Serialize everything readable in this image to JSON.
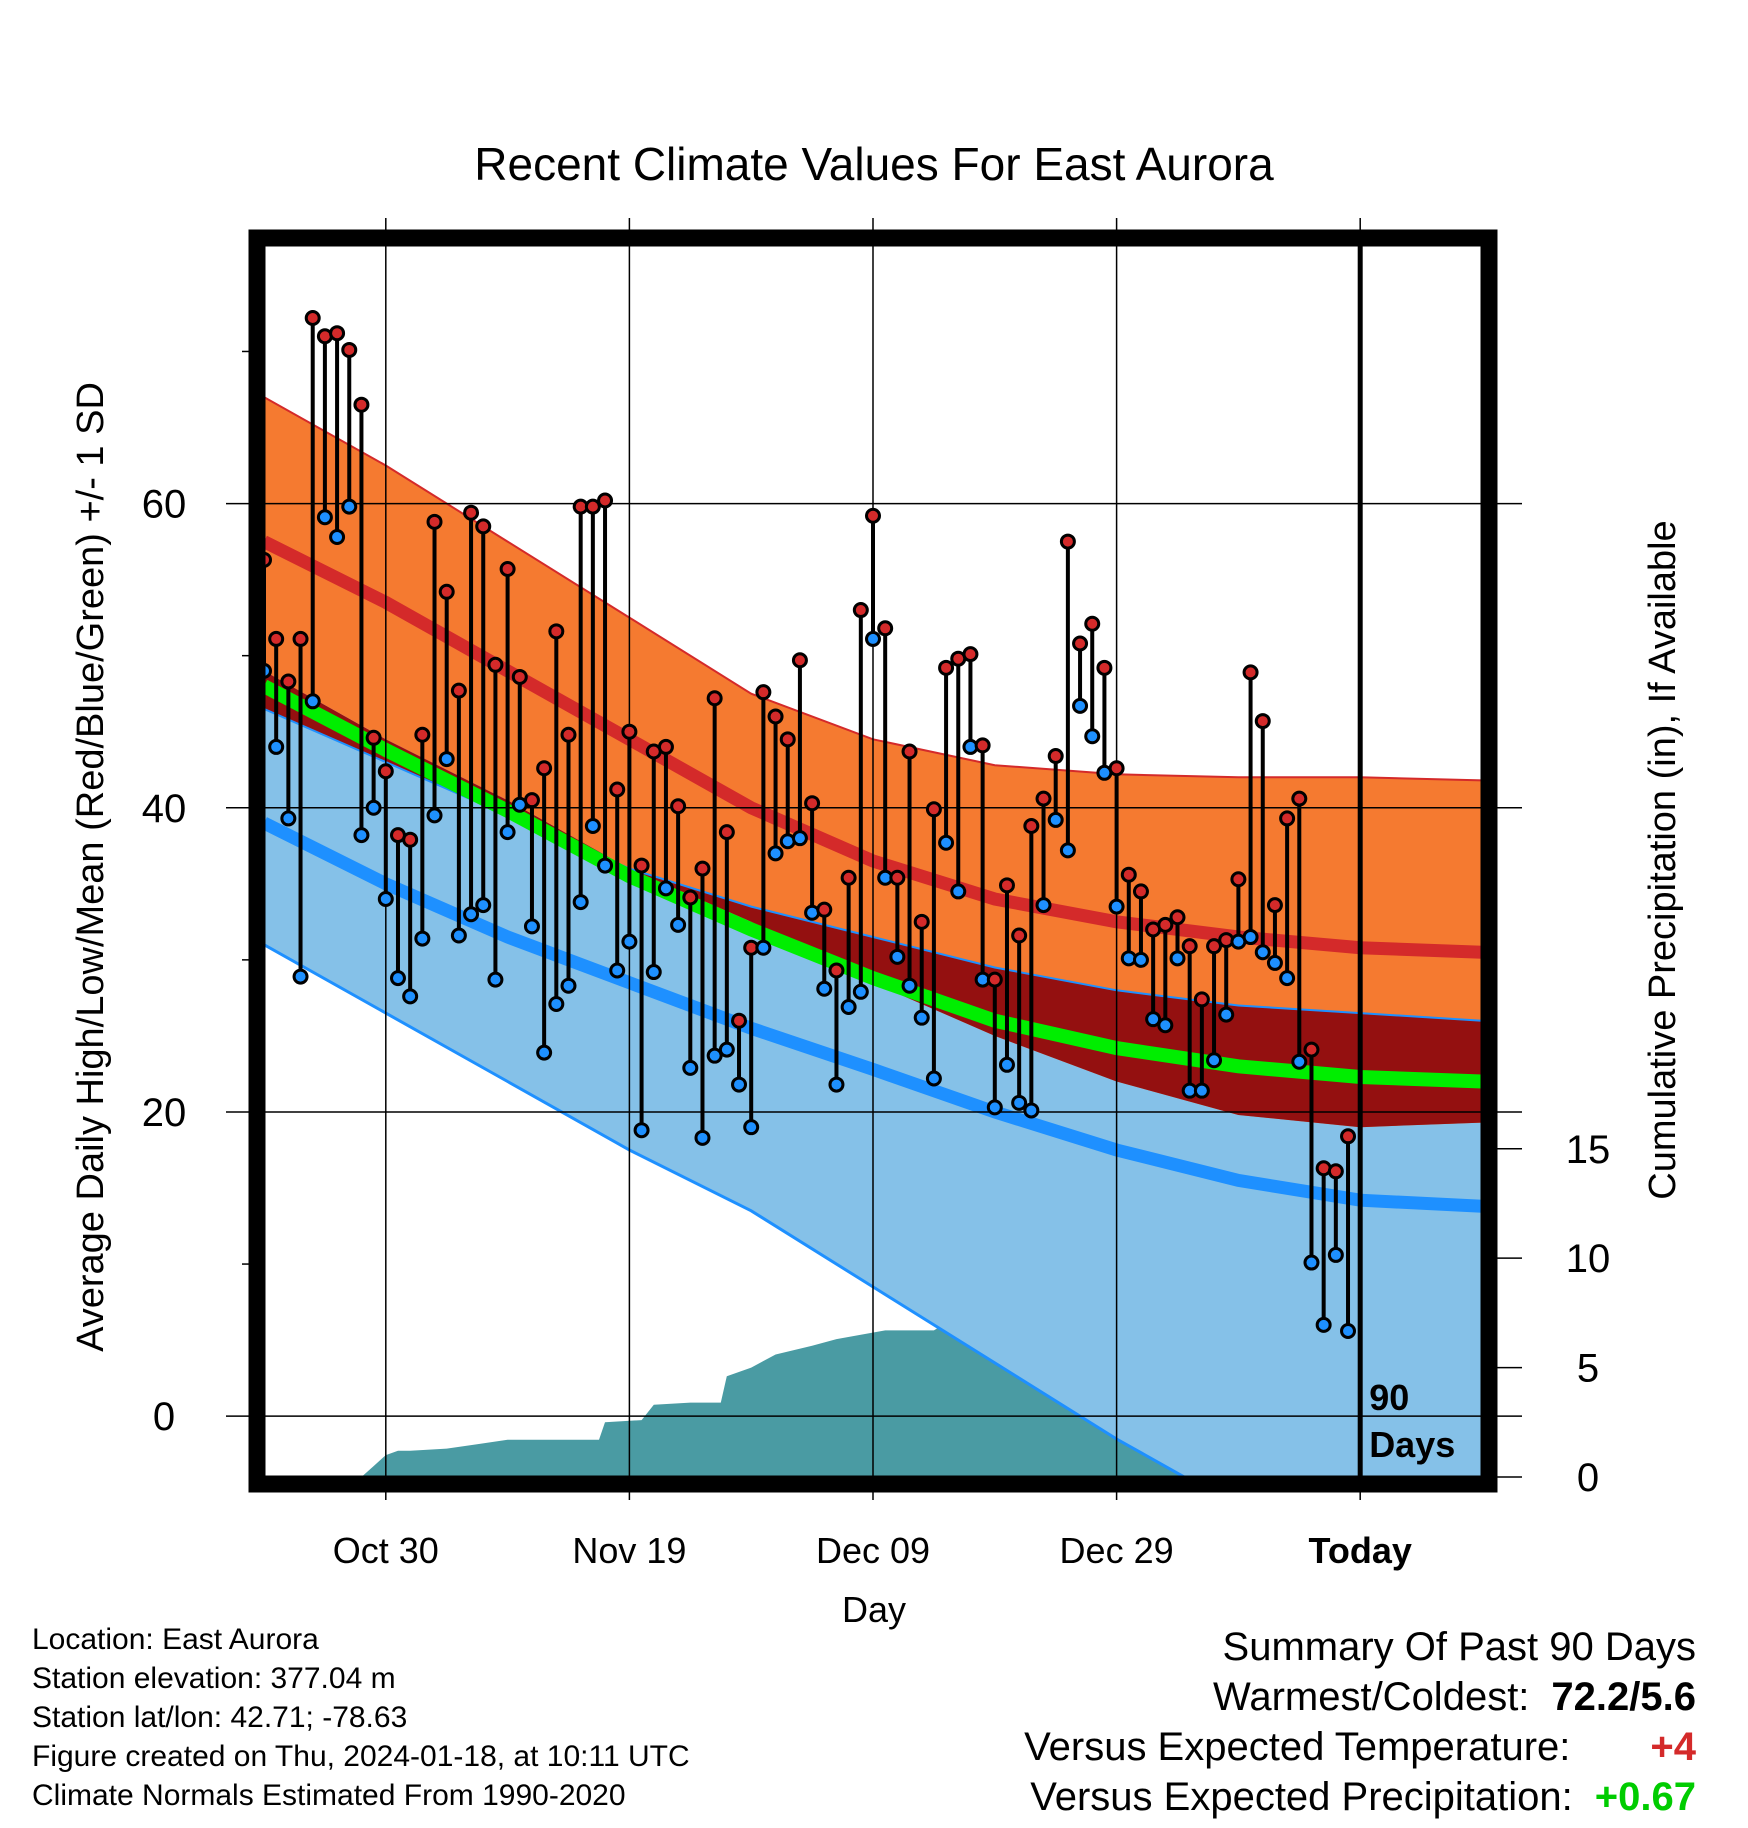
{
  "chart_data": {
    "type": "line",
    "title": "Recent Climate Values For East Aurora",
    "xlabel": "Day",
    "ylabel_left": "Average Daily High/Low/Mean (Red/Blue/Green) +/- 1 SD",
    "ylabel_right": "Cumulative Precipitation (in), If Available",
    "x_range": [
      0,
      100
    ],
    "y_range_temp": [
      -4,
      77
    ],
    "y_range_precip": [
      0,
      56.3
    ],
    "today_x": 90,
    "today_label": [
      "90",
      "Days"
    ],
    "x_ticks": [
      {
        "x": 10,
        "label": "Oct 30"
      },
      {
        "x": 30,
        "label": "Nov 19"
      },
      {
        "x": 50,
        "label": "Dec 09"
      },
      {
        "x": 70,
        "label": "Dec 29"
      },
      {
        "x": 90,
        "label": "Today"
      }
    ],
    "y_ticks_temp": [
      0,
      20,
      40,
      60
    ],
    "y_minor_ticks_temp": [
      10,
      30,
      50,
      70
    ],
    "y_ticks_precip": [
      0,
      5,
      10,
      15
    ],
    "normals": {
      "x": [
        0,
        10,
        20,
        30,
        40,
        50,
        60,
        70,
        80,
        90,
        100
      ],
      "high_upper": [
        67.0,
        62.5,
        57.5,
        52.5,
        47.5,
        44.5,
        42.8,
        42.2,
        42.0,
        42.0,
        41.8
      ],
      "high_mean": [
        57.5,
        53.5,
        49.0,
        44.5,
        40.0,
        36.5,
        34.0,
        32.5,
        31.5,
        30.8,
        30.5
      ],
      "high_lower": [
        49.0,
        44.5,
        40.5,
        36.0,
        32.5,
        28.5,
        25.0,
        22.0,
        19.8,
        19.0,
        19.3
      ],
      "mean_line": [
        48.0,
        43.8,
        39.8,
        35.5,
        32.0,
        28.8,
        26.0,
        24.2,
        23.0,
        22.3,
        22.0
      ],
      "low_upper": [
        46.5,
        43.0,
        39.5,
        36.0,
        33.5,
        31.5,
        29.5,
        28.0,
        27.0,
        26.5,
        26.0
      ],
      "low_mean": [
        39.0,
        35.0,
        31.5,
        28.5,
        25.5,
        22.8,
        20.0,
        17.5,
        15.5,
        14.2,
        13.8
      ],
      "low_lower": [
        31.0,
        26.5,
        22.0,
        17.5,
        13.5,
        8.5,
        3.5,
        -1.5,
        -6.0,
        -10.0,
        -14.0
      ]
    },
    "precip": {
      "x": [
        0,
        8.0,
        9.0,
        10.0,
        11.0,
        12.0,
        15.0,
        17.5,
        20.0,
        27.5,
        28.0,
        31.0,
        32.0,
        35.0,
        37.5,
        38.0,
        40.0,
        42.0,
        45.0,
        47.0,
        49.0,
        51.0,
        55.0,
        58.0,
        60.0,
        64.0,
        67.0,
        68.0,
        72.0,
        76.0,
        80.0,
        83.0,
        84.0,
        87.0,
        90.0,
        100.0
      ],
      "cum": [
        0,
        0,
        0.5,
        1.0,
        1.2,
        1.2,
        1.3,
        1.5,
        1.7,
        1.7,
        2.5,
        2.6,
        3.3,
        3.4,
        3.4,
        4.6,
        5.0,
        5.6,
        6.0,
        6.3,
        6.5,
        6.7,
        6.7,
        7.7,
        8.0,
        8.1,
        8.8,
        9.0,
        9.3,
        9.5,
        9.7,
        10.3,
        10.8,
        11.0,
        11.0,
        11.0
      ]
    },
    "observations": [
      {
        "x": 0,
        "high": 56.3,
        "low": 49.0
      },
      {
        "x": 1,
        "high": 51.1,
        "low": 44.0
      },
      {
        "x": 2,
        "high": 48.3,
        "low": 39.3
      },
      {
        "x": 3,
        "high": 51.1,
        "low": 28.9
      },
      {
        "x": 4,
        "high": 72.2,
        "low": 47.0
      },
      {
        "x": 5,
        "high": 71.0,
        "low": 59.1
      },
      {
        "x": 6,
        "high": 71.2,
        "low": 57.8
      },
      {
        "x": 7,
        "high": 70.1,
        "low": 59.8
      },
      {
        "x": 8,
        "high": 66.5,
        "low": 38.2
      },
      {
        "x": 9,
        "high": 44.6,
        "low": 40.0
      },
      {
        "x": 10,
        "high": 42.4,
        "low": 34.0
      },
      {
        "x": 11,
        "high": 38.2,
        "low": 28.8
      },
      {
        "x": 12,
        "high": 37.9,
        "low": 27.6
      },
      {
        "x": 13,
        "high": 44.8,
        "low": 31.4
      },
      {
        "x": 14,
        "high": 58.8,
        "low": 39.5
      },
      {
        "x": 15,
        "high": 54.2,
        "low": 43.2
      },
      {
        "x": 16,
        "high": 47.7,
        "low": 31.6
      },
      {
        "x": 17,
        "high": 59.4,
        "low": 33.0
      },
      {
        "x": 18,
        "high": 58.5,
        "low": 33.6
      },
      {
        "x": 19,
        "high": 49.4,
        "low": 28.7
      },
      {
        "x": 20,
        "high": 55.7,
        "low": 38.4
      },
      {
        "x": 21,
        "high": 48.6,
        "low": 40.2
      },
      {
        "x": 22,
        "high": 40.5,
        "low": 32.2
      },
      {
        "x": 23,
        "high": 42.6,
        "low": 23.9
      },
      {
        "x": 24,
        "high": 51.6,
        "low": 27.1
      },
      {
        "x": 25,
        "high": 44.8,
        "low": 28.3
      },
      {
        "x": 26,
        "high": 59.8,
        "low": 33.8
      },
      {
        "x": 27,
        "high": 59.8,
        "low": 38.8
      },
      {
        "x": 28,
        "high": 60.2,
        "low": 36.2
      },
      {
        "x": 29,
        "high": 41.2,
        "low": 29.3
      },
      {
        "x": 30,
        "high": 45.0,
        "low": 31.2
      },
      {
        "x": 31,
        "high": 36.2,
        "low": 18.8
      },
      {
        "x": 32,
        "high": 43.7,
        "low": 29.2
      },
      {
        "x": 33,
        "high": 44.0,
        "low": 34.7
      },
      {
        "x": 34,
        "high": 40.1,
        "low": 32.3
      },
      {
        "x": 35,
        "high": 34.1,
        "low": 22.9
      },
      {
        "x": 36,
        "high": 36.0,
        "low": 18.3
      },
      {
        "x": 37,
        "high": 47.2,
        "low": 23.7
      },
      {
        "x": 38,
        "high": 38.4,
        "low": 24.1
      },
      {
        "x": 39,
        "high": 26.0,
        "low": 21.8
      },
      {
        "x": 40,
        "high": 30.8,
        "low": 19.0
      },
      {
        "x": 41,
        "high": 47.6,
        "low": 30.8
      },
      {
        "x": 42,
        "high": 46.0,
        "low": 37.0
      },
      {
        "x": 43,
        "high": 44.5,
        "low": 37.8
      },
      {
        "x": 44,
        "high": 49.7,
        "low": 38.0
      },
      {
        "x": 45,
        "high": 40.3,
        "low": 33.1
      },
      {
        "x": 46,
        "high": 33.3,
        "low": 28.1
      },
      {
        "x": 47,
        "high": 29.3,
        "low": 21.8
      },
      {
        "x": 48,
        "high": 35.4,
        "low": 26.9
      },
      {
        "x": 49,
        "high": 53.0,
        "low": 27.9
      },
      {
        "x": 50,
        "high": 59.2,
        "low": 51.1
      },
      {
        "x": 51,
        "high": 51.8,
        "low": 35.4
      },
      {
        "x": 52,
        "high": 35.4,
        "low": 30.2
      },
      {
        "x": 53,
        "high": 43.7,
        "low": 28.3
      },
      {
        "x": 54,
        "high": 32.5,
        "low": 26.2
      },
      {
        "x": 55,
        "high": 39.9,
        "low": 22.2
      },
      {
        "x": 56,
        "high": 49.2,
        "low": 37.7
      },
      {
        "x": 57,
        "high": 49.8,
        "low": 34.5
      },
      {
        "x": 58,
        "high": 50.1,
        "low": 44.0
      },
      {
        "x": 59,
        "high": 44.1,
        "low": 28.7
      },
      {
        "x": 60,
        "high": 28.7,
        "low": 20.3
      },
      {
        "x": 61,
        "high": 34.9,
        "low": 23.1
      },
      {
        "x": 62,
        "high": 31.6,
        "low": 20.6
      },
      {
        "x": 63,
        "high": 38.8,
        "low": 20.1
      },
      {
        "x": 64,
        "high": 40.6,
        "low": 33.6
      },
      {
        "x": 65,
        "high": 43.4,
        "low": 39.2
      },
      {
        "x": 66,
        "high": 57.5,
        "low": 37.2
      },
      {
        "x": 67,
        "high": 50.8,
        "low": 46.7
      },
      {
        "x": 68,
        "high": 52.1,
        "low": 44.7
      },
      {
        "x": 69,
        "high": 49.2,
        "low": 42.3
      },
      {
        "x": 70,
        "high": 42.6,
        "low": 33.5
      },
      {
        "x": 71,
        "high": 35.6,
        "low": 30.1
      },
      {
        "x": 72,
        "high": 34.5,
        "low": 30.0
      },
      {
        "x": 73,
        "high": 32.0,
        "low": 26.1
      },
      {
        "x": 74,
        "high": 32.3,
        "low": 25.7
      },
      {
        "x": 75,
        "high": 32.8,
        "low": 30.1
      },
      {
        "x": 76,
        "high": 30.9,
        "low": 21.4
      },
      {
        "x": 77,
        "high": 27.4,
        "low": 21.4
      },
      {
        "x": 78,
        "high": 30.9,
        "low": 23.4
      },
      {
        "x": 79,
        "high": 31.3,
        "low": 26.4
      },
      {
        "x": 80,
        "high": 35.3,
        "low": 31.2
      },
      {
        "x": 81,
        "high": 48.9,
        "low": 31.5
      },
      {
        "x": 82,
        "high": 45.7,
        "low": 30.5
      },
      {
        "x": 83,
        "high": 33.6,
        "low": 29.8
      },
      {
        "x": 84,
        "high": 39.3,
        "low": 28.8
      },
      {
        "x": 85,
        "high": 40.6,
        "low": 23.3
      },
      {
        "x": 86,
        "high": 24.1,
        "low": 10.1
      },
      {
        "x": 87,
        "high": 16.3,
        "low": 6.0
      },
      {
        "x": 88,
        "high": 16.1,
        "low": 10.6
      },
      {
        "x": 89,
        "high": 18.4,
        "low": 5.6
      }
    ]
  },
  "footer": {
    "location": "Location: East Aurora",
    "elevation": "Station elevation: 377.04 m",
    "latlon": "Station lat/lon: 42.71; -78.63",
    "created": "Figure created on Thu, 2024-01-18, at 10:11 UTC",
    "normals_period": "Climate Normals Estimated From 1990-2020"
  },
  "summary": {
    "title": "Summary Of Past 90 Days",
    "warmest_coldest_label": "Warmest/Coldest:",
    "warmest_coldest_value": "72.2/5.6",
    "temp_label": "Versus Expected Temperature:",
    "temp_value": "+4",
    "precip_label": "Versus Expected Precipitation:",
    "precip_value": "+0.67"
  },
  "colors": {
    "high_band": "#f57a30",
    "high_line": "#d42a2a",
    "overlap_band": "#941010",
    "mean_line": "#00ee00",
    "low_band": "#85c1e8",
    "low_line": "#1e90ff",
    "precip_fill": "#4a9ba3",
    "high_dot": "#d42a2a",
    "low_dot": "#1e90ff",
    "temp_plus": "#d42a2a",
    "precip_plus": "#00cc00"
  }
}
